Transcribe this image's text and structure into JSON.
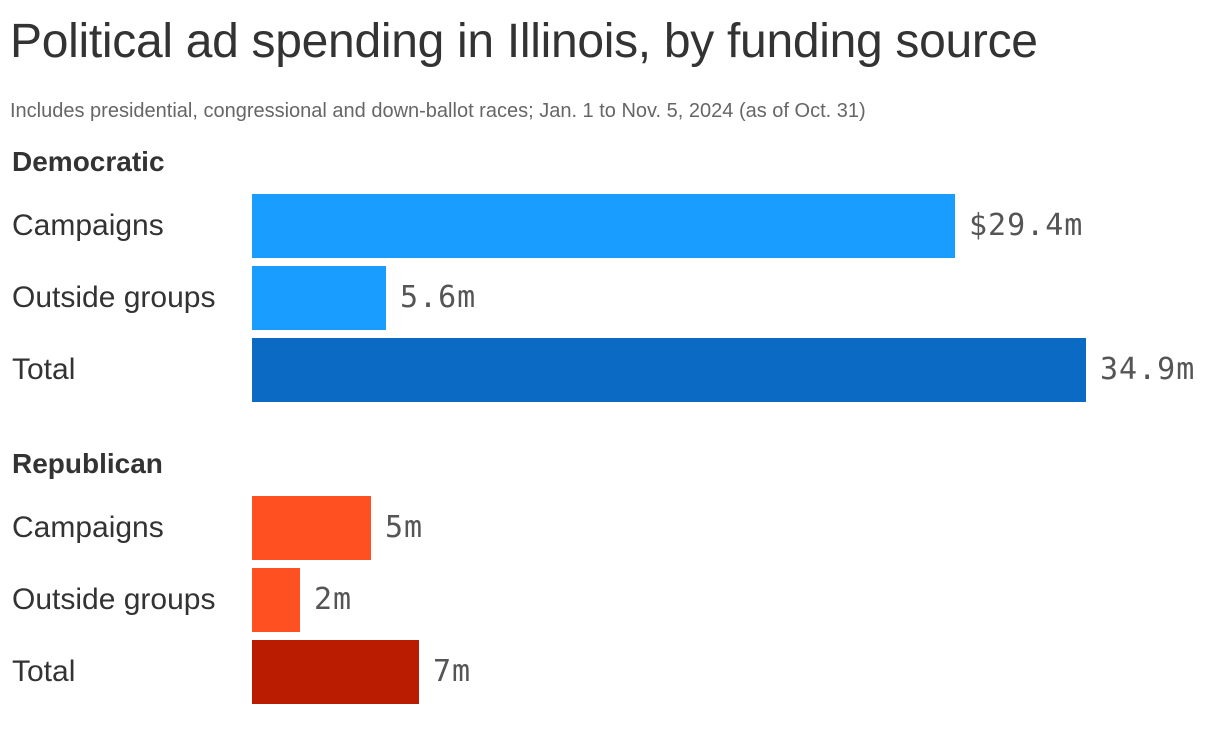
{
  "chart_data": {
    "type": "bar",
    "orientation": "horizontal",
    "title": "Political ad spending in Illinois, by funding source",
    "subtitle": "Includes presidential, congressional and down-ballot races; Jan. 1 to Nov. 5, 2024 (as of Oct. 31)",
    "xlim": [
      0,
      34.9
    ],
    "groups": [
      {
        "name": "Democratic",
        "bars": [
          {
            "label": "Campaigns",
            "value": 29.4,
            "display": "$29.4m",
            "color": "#199EFF"
          },
          {
            "label": "Outside groups",
            "value": 5.6,
            "display": "5.6m",
            "color": "#199EFF"
          },
          {
            "label": "Total",
            "value": 34.9,
            "display": "34.9m",
            "color": "#0B6BC4"
          }
        ]
      },
      {
        "name": "Republican",
        "bars": [
          {
            "label": "Campaigns",
            "value": 5,
            "display": "5m",
            "color": "#FF5022"
          },
          {
            "label": "Outside groups",
            "value": 2,
            "display": "2m",
            "color": "#FF5022"
          },
          {
            "label": "Total",
            "value": 7,
            "display": "7m",
            "color": "#B91C00"
          }
        ]
      }
    ]
  }
}
